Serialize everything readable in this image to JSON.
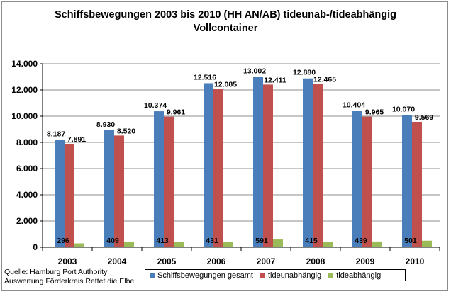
{
  "chart_data": {
    "type": "bar",
    "title_line1": "Schiffsbewegungen 2003 bis 2010 (HH AN/AB) tideunab-/tideabhängig",
    "title_line2": "Vollcontainer",
    "categories": [
      "2003",
      "2004",
      "2005",
      "2006",
      "2007",
      "2008",
      "2009",
      "2010"
    ],
    "series": [
      {
        "name": "Schiffsbewegungen gesamt",
        "color": "#4a7ebb",
        "values": [
          8187,
          8930,
          10374,
          12516,
          13002,
          12880,
          10404,
          10070
        ],
        "labels": [
          "8.187",
          "8.930",
          "10.374",
          "12.516",
          "13.002",
          "12.880",
          "10.404",
          "10.070"
        ]
      },
      {
        "name": "tideunabhängig",
        "color": "#c0504d",
        "values": [
          7891,
          8520,
          9961,
          12085,
          12411,
          12465,
          9965,
          9569
        ],
        "labels": [
          "7.891",
          "8.520",
          "9.961",
          "12.085",
          "12.411",
          "12.465",
          "9.965",
          "9.569"
        ]
      },
      {
        "name": "tideabhängig",
        "color": "#9bbb59",
        "values": [
          296,
          409,
          413,
          431,
          591,
          415,
          439,
          501
        ],
        "labels": [
          "296",
          "409",
          "413",
          "431",
          "591",
          "415",
          "439",
          "501"
        ]
      }
    ],
    "ylim": [
      0,
      14000
    ],
    "yticks": [
      0,
      2000,
      4000,
      6000,
      8000,
      10000,
      12000,
      14000
    ],
    "ytick_labels": [
      "0",
      "2.000",
      "4.000",
      "6.000",
      "8.000",
      "10.000",
      "12.000",
      "14.000"
    ],
    "grid": true,
    "legend_position": "bottom"
  },
  "source": {
    "line1": "Quelle: Hamburg Port Authority",
    "line2": "Auswertung Förderkreis Rettet die Elbe"
  }
}
